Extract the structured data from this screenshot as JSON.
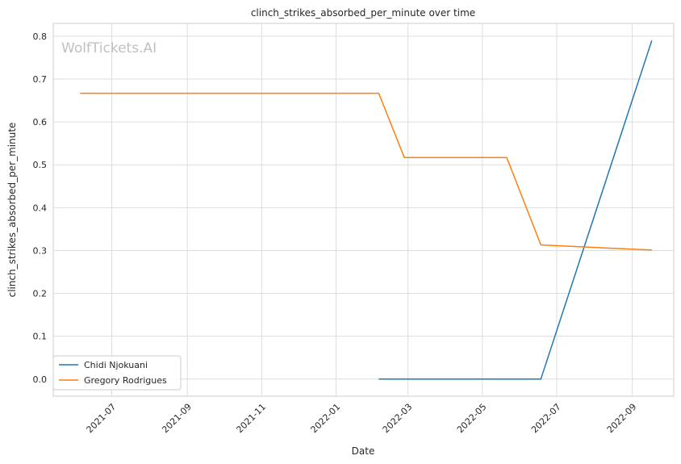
{
  "chart_data": {
    "type": "line",
    "title": "clinch_strikes_absorbed_per_minute over time",
    "xlabel": "Date",
    "ylabel": "clinch_strikes_absorbed_per_minute",
    "watermark": "WolfTickets.AI",
    "xlim": [
      "2021-05-14",
      "2022-10-05"
    ],
    "ylim": [
      -0.04,
      0.83
    ],
    "x_ticks": [
      "2021-07",
      "2021-09",
      "2021-11",
      "2022-01",
      "2022-03",
      "2022-05",
      "2022-07",
      "2022-09"
    ],
    "y_ticks": [
      "0.0",
      "0.1",
      "0.2",
      "0.3",
      "0.4",
      "0.5",
      "0.6",
      "0.7",
      "0.8"
    ],
    "grid": true,
    "legend_position": "lower-left",
    "series": [
      {
        "name": "Chidi Njokuani",
        "color": "#1f77b4",
        "points": [
          {
            "x": "2022-02-05",
            "y": 0.0
          },
          {
            "x": "2022-06-18",
            "y": 0.0
          },
          {
            "x": "2022-09-17",
            "y": 0.79
          }
        ]
      },
      {
        "name": "Gregory Rodrigues",
        "color": "#ff7f0e",
        "points": [
          {
            "x": "2021-06-05",
            "y": 0.667
          },
          {
            "x": "2022-02-05",
            "y": 0.667
          },
          {
            "x": "2022-02-26",
            "y": 0.517
          },
          {
            "x": "2022-05-21",
            "y": 0.517
          },
          {
            "x": "2022-06-18",
            "y": 0.313
          },
          {
            "x": "2022-09-17",
            "y": 0.301
          }
        ]
      }
    ]
  }
}
